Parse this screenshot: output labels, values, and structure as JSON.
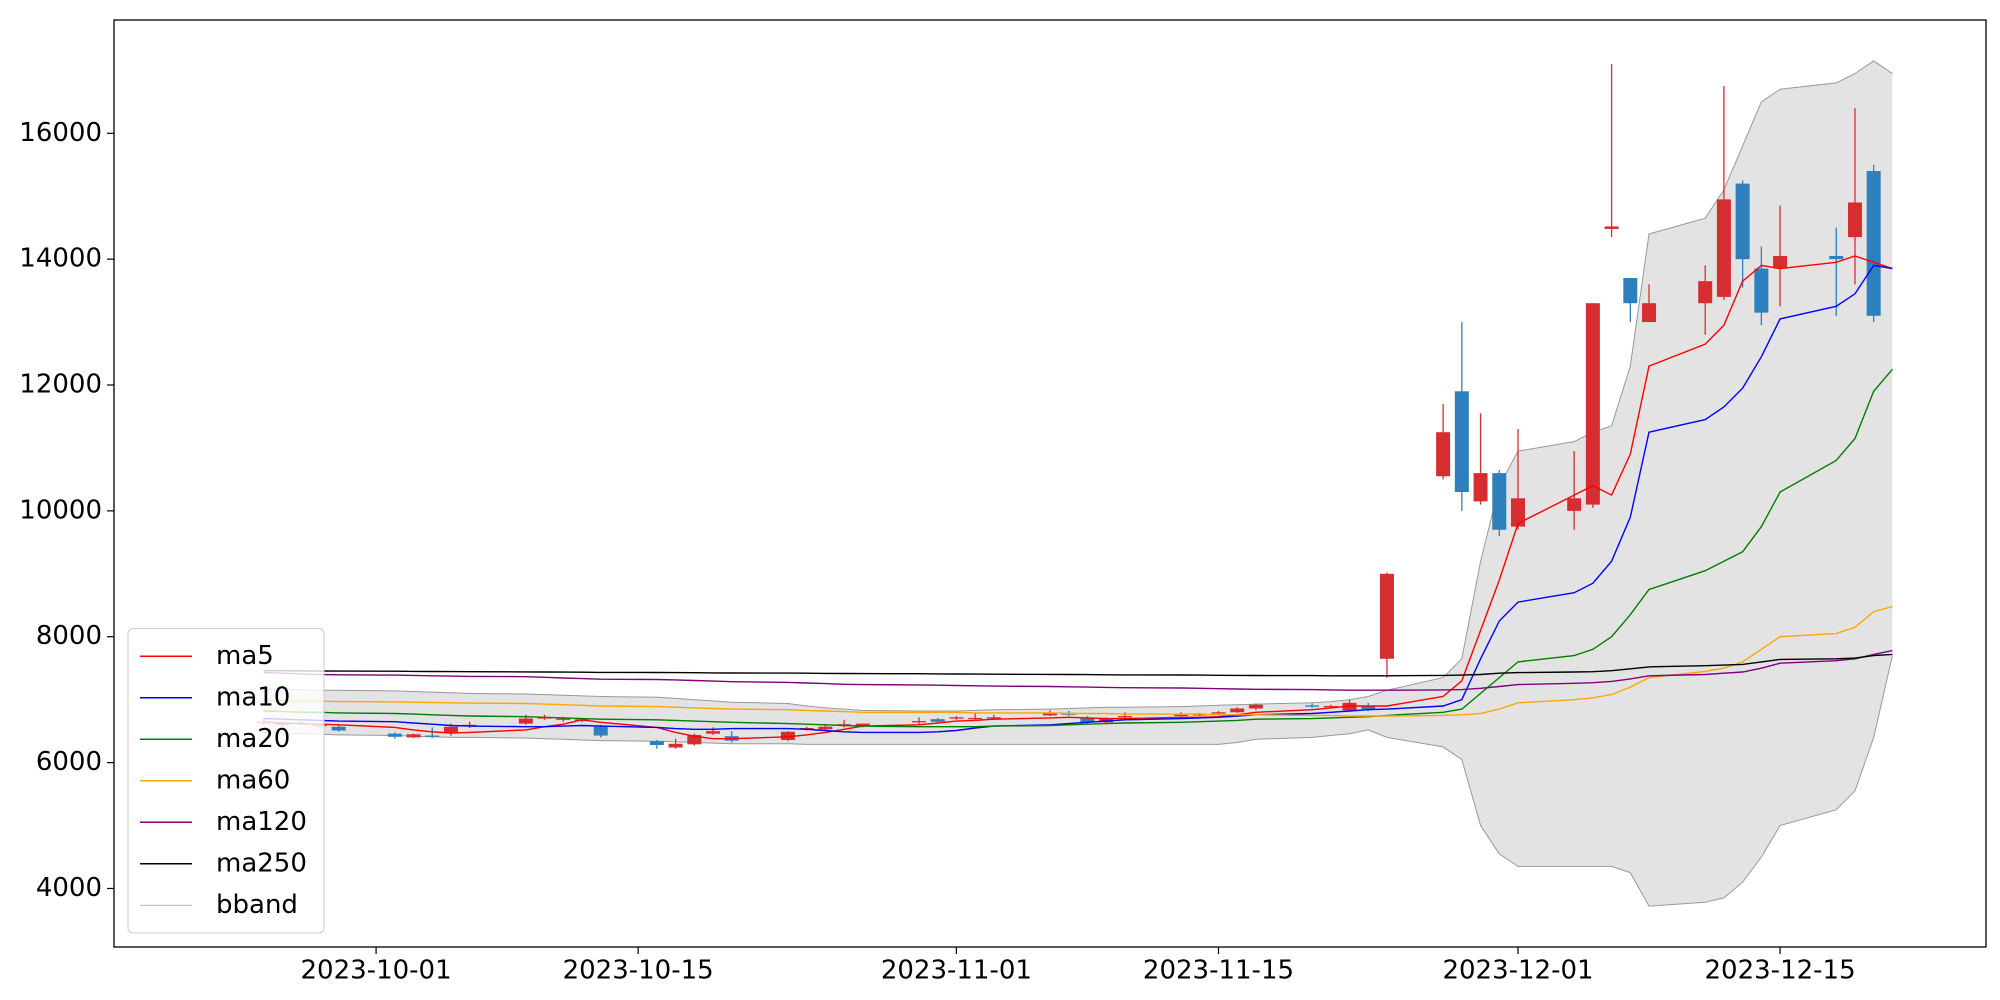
{
  "chart_data": {
    "type": "candlestick",
    "x": [
      "2023-09-25",
      "2023-09-26",
      "2023-09-27",
      "2023-09-28",
      "2023-09-29",
      "2023-10-02",
      "2023-10-03",
      "2023-10-04",
      "2023-10-05",
      "2023-10-06",
      "2023-10-09",
      "2023-10-10",
      "2023-10-11",
      "2023-10-12",
      "2023-10-13",
      "2023-10-16",
      "2023-10-17",
      "2023-10-18",
      "2023-10-19",
      "2023-10-20",
      "2023-10-23",
      "2023-10-24",
      "2023-10-25",
      "2023-10-26",
      "2023-10-27",
      "2023-10-30",
      "2023-10-31",
      "2023-11-01",
      "2023-11-02",
      "2023-11-03",
      "2023-11-06",
      "2023-11-07",
      "2023-11-08",
      "2023-11-09",
      "2023-11-10",
      "2023-11-13",
      "2023-11-14",
      "2023-11-15",
      "2023-11-16",
      "2023-11-17",
      "2023-11-20",
      "2023-11-21",
      "2023-11-22",
      "2023-11-23",
      "2023-11-24",
      "2023-11-27",
      "2023-11-28",
      "2023-11-29",
      "2023-11-30",
      "2023-12-01",
      "2023-12-04",
      "2023-12-05",
      "2023-12-06",
      "2023-12-07",
      "2023-12-08",
      "2023-12-11",
      "2023-12-12",
      "2023-12-13",
      "2023-12-14",
      "2023-12-15",
      "2023-12-18",
      "2023-12-19",
      "2023-12-20",
      "2023-12-21"
    ],
    "open": [
      6640,
      6600,
      6630,
      6600,
      6570,
      6460,
      6400,
      6430,
      6480,
      6580,
      6620,
      6700,
      6680,
      6690,
      6570,
      6340,
      6240,
      6290,
      6460,
      6420,
      6360,
      6530,
      6530,
      6590,
      6580,
      6650,
      6690,
      6700,
      6700,
      6700,
      6750,
      6790,
      6700,
      6640,
      6720,
      6740,
      6760,
      6780,
      6800,
      6860,
      6910,
      6890,
      6830,
      6900,
      7650,
      10550,
      11900,
      10150,
      10600,
      9750,
      10000,
      10100,
      14480,
      13700,
      13000,
      13300,
      13400,
      15200,
      13850,
      13850,
      14050,
      14350,
      15400,
      null
    ],
    "high": [
      6700,
      6640,
      6660,
      6620,
      6590,
      6480,
      6460,
      6560,
      6620,
      6650,
      6760,
      6760,
      6730,
      6710,
      6600,
      6360,
      6380,
      6460,
      6560,
      6500,
      6500,
      6570,
      6600,
      6680,
      6620,
      6720,
      6710,
      6740,
      6790,
      6760,
      6830,
      6820,
      6740,
      6720,
      6800,
      6800,
      6790,
      6820,
      6880,
      6940,
      6940,
      6920,
      7000,
      6950,
      9020,
      11700,
      13000,
      11550,
      10650,
      11300,
      10950,
      13300,
      17100,
      13700,
      13600,
      13900,
      16750,
      15250,
      14200,
      14850,
      14500,
      16400,
      15500,
      null
    ],
    "low": [
      6600,
      6580,
      6600,
      6540,
      6490,
      6380,
      6390,
      6390,
      6430,
      6550,
      6600,
      6680,
      6650,
      6640,
      6400,
      6220,
      6220,
      6270,
      6440,
      6320,
      6340,
      6510,
      6520,
      6560,
      6560,
      6610,
      6620,
      6680,
      6670,
      6680,
      6740,
      6740,
      6620,
      6620,
      6700,
      6720,
      6740,
      6760,
      6790,
      6840,
      6870,
      6860,
      6810,
      6820,
      7350,
      10500,
      10000,
      10100,
      9600,
      9700,
      9700,
      10050,
      14350,
      13000,
      13000,
      12800,
      13350,
      13550,
      12950,
      13250,
      13100,
      13600,
      13000,
      null
    ],
    "close": [
      6650,
      6630,
      6620,
      6580,
      6510,
      6410,
      6450,
      6420,
      6570,
      6600,
      6700,
      6720,
      6700,
      6660,
      6430,
      6280,
      6300,
      6440,
      6500,
      6350,
      6490,
      6550,
      6570,
      6610,
      6620,
      6660,
      6650,
      6720,
      6710,
      6720,
      6790,
      6760,
      6640,
      6700,
      6740,
      6760,
      6770,
      6800,
      6860,
      6920,
      6890,
      6900,
      6950,
      6850,
      9000,
      11250,
      10300,
      10600,
      9700,
      10200,
      10200,
      13300,
      14520,
      13300,
      13300,
      13650,
      14950,
      14000,
      13150,
      14050,
      14000,
      14900,
      13100,
      null
    ],
    "up_color": "#d62e30",
    "down_color": "#2d7fbd",
    "series": [
      {
        "name": "ma5",
        "color": "#ff0000",
        "values": [
          6640,
          6630,
          6620,
          6610,
          6600,
          6560,
          6520,
          6490,
          6470,
          6480,
          6520,
          6570,
          6610,
          6680,
          6640,
          6560,
          6480,
          6420,
          6380,
          6380,
          6410,
          6440,
          6480,
          6530,
          6580,
          6600,
          6630,
          6660,
          6670,
          6690,
          6710,
          6720,
          6710,
          6700,
          6700,
          6720,
          6720,
          6730,
          6760,
          6800,
          6840,
          6870,
          6900,
          6900,
          6900,
          7050,
          7300,
          8100,
          8900,
          9800,
          10250,
          10400,
          10250,
          10900,
          12300,
          12650,
          12950,
          13650,
          13900,
          13850,
          13950,
          14050,
          13950,
          13850
        ]
      },
      {
        "name": "ma10",
        "color": "#0000ff",
        "values": [
          6700,
          6690,
          6680,
          6670,
          6660,
          6650,
          6630,
          6610,
          6590,
          6580,
          6570,
          6570,
          6580,
          6590,
          6580,
          6560,
          6540,
          6530,
          6530,
          6540,
          6540,
          6530,
          6510,
          6490,
          6480,
          6480,
          6490,
          6510,
          6550,
          6580,
          6600,
          6620,
          6640,
          6660,
          6680,
          6700,
          6710,
          6720,
          6740,
          6760,
          6780,
          6800,
          6820,
          6840,
          6850,
          6900,
          7000,
          7650,
          8250,
          8550,
          8700,
          8850,
          9200,
          9900,
          11250,
          11450,
          11650,
          11950,
          12450,
          13050,
          13250,
          13450,
          13900,
          13850
        ]
      },
      {
        "name": "ma20",
        "color": "#008000",
        "values": [
          6820,
          6810,
          6800,
          6800,
          6790,
          6780,
          6770,
          6760,
          6750,
          6740,
          6730,
          6720,
          6710,
          6700,
          6690,
          6680,
          6670,
          6660,
          6650,
          6640,
          6620,
          6610,
          6600,
          6590,
          6580,
          6570,
          6570,
          6570,
          6570,
          6580,
          6590,
          6600,
          6610,
          6620,
          6630,
          6640,
          6650,
          6660,
          6670,
          6690,
          6700,
          6710,
          6720,
          6730,
          6750,
          6800,
          6850,
          7100,
          7350,
          7600,
          7700,
          7800,
          8000,
          8350,
          8750,
          9050,
          9200,
          9350,
          9750,
          10300,
          10800,
          11150,
          11900,
          12250
        ]
      },
      {
        "name": "ma60",
        "color": "#ffa500",
        "values": [
          6990,
          6985,
          6980,
          6975,
          6970,
          6965,
          6960,
          6955,
          6950,
          6945,
          6940,
          6930,
          6920,
          6910,
          6900,
          6890,
          6880,
          6870,
          6860,
          6850,
          6840,
          6830,
          6820,
          6810,
          6800,
          6800,
          6800,
          6800,
          6790,
          6790,
          6790,
          6780,
          6780,
          6780,
          6770,
          6770,
          6770,
          6760,
          6760,
          6760,
          6750,
          6750,
          6740,
          6740,
          6740,
          6750,
          6760,
          6780,
          6850,
          6950,
          7000,
          7030,
          7080,
          7200,
          7350,
          7450,
          7500,
          7600,
          7800,
          8000,
          8050,
          8150,
          8400,
          8480
        ]
      },
      {
        "name": "ma120",
        "color": "#800080",
        "values": [
          7430,
          7420,
          7410,
          7400,
          7395,
          7390,
          7385,
          7380,
          7375,
          7370,
          7365,
          7355,
          7345,
          7335,
          7325,
          7320,
          7315,
          7305,
          7295,
          7285,
          7275,
          7265,
          7255,
          7245,
          7240,
          7235,
          7230,
          7225,
          7220,
          7215,
          7210,
          7205,
          7200,
          7195,
          7190,
          7185,
          7180,
          7175,
          7170,
          7165,
          7160,
          7155,
          7150,
          7150,
          7150,
          7155,
          7160,
          7180,
          7210,
          7240,
          7260,
          7270,
          7290,
          7330,
          7380,
          7400,
          7420,
          7440,
          7500,
          7580,
          7620,
          7650,
          7720,
          7780
        ]
      },
      {
        "name": "ma250",
        "color": "#000000",
        "values": [
          7460,
          7460,
          7458,
          7456,
          7454,
          7452,
          7450,
          7448,
          7446,
          7444,
          7442,
          7440,
          7438,
          7436,
          7434,
          7432,
          7430,
          7428,
          7426,
          7424,
          7422,
          7420,
          7418,
          7416,
          7414,
          7412,
          7410,
          7408,
          7406,
          7404,
          7402,
          7400,
          7398,
          7396,
          7394,
          7392,
          7390,
          7388,
          7386,
          7384,
          7382,
          7380,
          7380,
          7380,
          7380,
          7385,
          7390,
          7400,
          7420,
          7430,
          7440,
          7445,
          7460,
          7490,
          7520,
          7540,
          7550,
          7560,
          7600,
          7640,
          7650,
          7660,
          7700,
          7720
        ]
      }
    ],
    "band": {
      "name": "bband",
      "color": "#999999",
      "fill": "#e3e3e3",
      "upper": [
        7170,
        7170,
        7160,
        7150,
        7150,
        7140,
        7130,
        7120,
        7110,
        7100,
        7090,
        7080,
        7070,
        7060,
        7050,
        7040,
        7020,
        7000,
        6980,
        6960,
        6940,
        6900,
        6870,
        6850,
        6830,
        6820,
        6820,
        6820,
        6830,
        6840,
        6850,
        6860,
        6870,
        6880,
        6880,
        6890,
        6900,
        6910,
        6920,
        6930,
        6950,
        6970,
        7000,
        7050,
        7150,
        7350,
        7650,
        9200,
        10400,
        10950,
        11100,
        11250,
        11350,
        12300,
        14400,
        14650,
        15100,
        15800,
        16500,
        16700,
        16800,
        16950,
        17150,
        16950
      ],
      "lower": [
        6480,
        6470,
        6460,
        6450,
        6440,
        6430,
        6420,
        6410,
        6400,
        6400,
        6390,
        6380,
        6370,
        6360,
        6350,
        6340,
        6330,
        6320,
        6310,
        6300,
        6300,
        6290,
        6290,
        6290,
        6290,
        6290,
        6290,
        6290,
        6290,
        6290,
        6290,
        6290,
        6290,
        6290,
        6290,
        6290,
        6290,
        6290,
        6320,
        6370,
        6400,
        6430,
        6460,
        6520,
        6400,
        6250,
        6050,
        5000,
        4550,
        4350,
        4350,
        4350,
        4350,
        4250,
        3720,
        3780,
        3850,
        4100,
        4500,
        5000,
        5250,
        5550,
        6400,
        7700
      ]
    },
    "xlim": [
      "2023-09-17",
      "2023-12-26"
    ],
    "xticks": [
      "2023-10-01",
      "2023-10-15",
      "2023-11-01",
      "2023-11-15",
      "2023-12-01",
      "2023-12-15"
    ],
    "ylim": [
      3070,
      17800
    ],
    "yticks": [
      4000,
      6000,
      8000,
      10000,
      12000,
      14000,
      16000
    ],
    "legend": "lower left"
  }
}
